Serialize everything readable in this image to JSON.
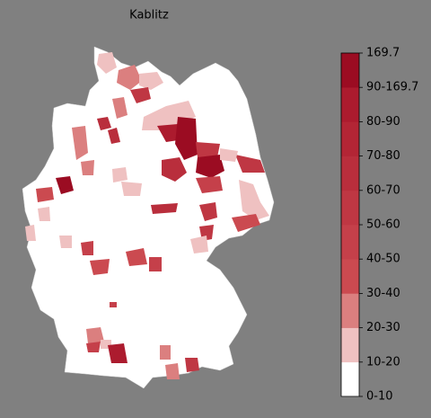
{
  "title": "Kablitz",
  "legend": {
    "labels": [
      "0-10",
      "10-20",
      "20-30",
      "30-40",
      "40-50",
      "50-60",
      "60-70",
      "70-80",
      "80-90",
      "90-169.7",
      "169.7"
    ],
    "colors": [
      "#ffffff",
      "#efc1c1",
      "#db7f7f",
      "#cb4a50",
      "#c5404a",
      "#bf3743",
      "#b92e3c",
      "#b32535",
      "#ac1b2e",
      "#9b0c22"
    ]
  }
}
